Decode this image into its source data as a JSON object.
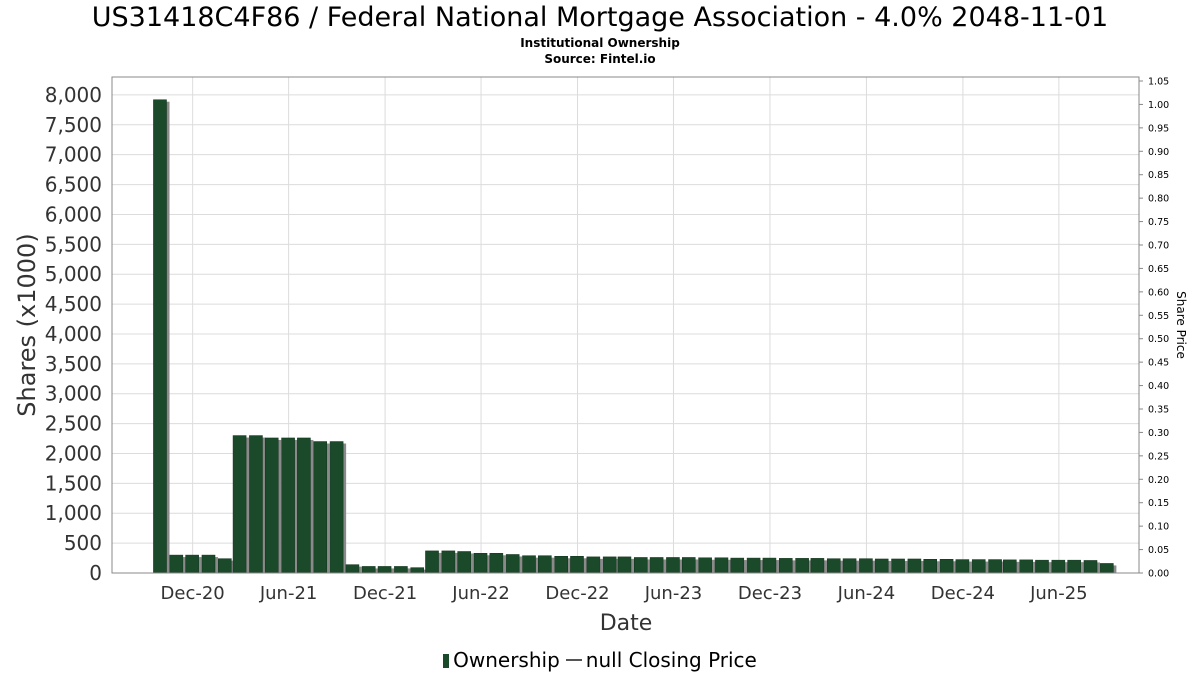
{
  "title": "US31418C4F86 / Federal National Mortgage Association - 4.0% 2048-11-01",
  "subtitle1": "Institutional Ownership",
  "subtitle2": "Source: Fintel.io",
  "legend": {
    "ownership": "Ownership",
    "price": "null Closing Price"
  },
  "colors": {
    "bar": "#1b4a2a",
    "bar_shadow": "#8a8a8a",
    "grid": "#dcdcdc",
    "frame": "#888888"
  },
  "chart_data": {
    "type": "bar",
    "xlabel": "Date",
    "ylabel": "Shares (x1000)",
    "y2label": "Share Price",
    "ylim": [
      0,
      8300
    ],
    "y2lim": [
      0,
      1.05
    ],
    "yticks": [
      0,
      500,
      1000,
      1500,
      2000,
      2500,
      3000,
      3500,
      4000,
      4500,
      5000,
      5500,
      6000,
      6500,
      7000,
      7500,
      8000
    ],
    "ytick_labels": [
      "0",
      "500",
      "1,000",
      "1,500",
      "2,000",
      "2,500",
      "3,000",
      "3,500",
      "4,000",
      "4,500",
      "5,000",
      "5,500",
      "6,000",
      "6,500",
      "7,000",
      "7,500",
      "8,000"
    ],
    "y2ticks": [
      "0.00",
      "0.05",
      "0.10",
      "0.15",
      "0.20",
      "0.25",
      "0.30",
      "0.35",
      "0.40",
      "0.45",
      "0.50",
      "0.55",
      "0.60",
      "0.65",
      "0.70",
      "0.75",
      "0.80",
      "0.85",
      "0.90",
      "0.95",
      "1.00",
      "1.05"
    ],
    "x_range": [
      "2020-07-01",
      "2025-10-31"
    ],
    "xticks": [
      {
        "date": "2020-12-01",
        "label": "Dec-20"
      },
      {
        "date": "2021-06-01",
        "label": "Jun-21"
      },
      {
        "date": "2021-12-01",
        "label": "Dec-21"
      },
      {
        "date": "2022-06-01",
        "label": "Jun-22"
      },
      {
        "date": "2022-12-01",
        "label": "Dec-22"
      },
      {
        "date": "2023-06-01",
        "label": "Jun-23"
      },
      {
        "date": "2023-12-01",
        "label": "Dec-23"
      },
      {
        "date": "2024-06-01",
        "label": "Jun-24"
      },
      {
        "date": "2024-12-01",
        "label": "Dec-24"
      },
      {
        "date": "2025-06-01",
        "label": "Jun-25"
      }
    ],
    "grid": true,
    "legend_position": "bottom",
    "series": [
      {
        "name": "Ownership",
        "points": [
          {
            "date": "2020-09-30",
            "value": 7920
          },
          {
            "date": "2020-10-31",
            "value": 300
          },
          {
            "date": "2020-11-30",
            "value": 300
          },
          {
            "date": "2020-12-31",
            "value": 300
          },
          {
            "date": "2021-01-31",
            "value": 240
          },
          {
            "date": "2021-02-28",
            "value": 2300
          },
          {
            "date": "2021-03-31",
            "value": 2300
          },
          {
            "date": "2021-04-30",
            "value": 2260
          },
          {
            "date": "2021-05-31",
            "value": 2260
          },
          {
            "date": "2021-06-30",
            "value": 2260
          },
          {
            "date": "2021-07-31",
            "value": 2200
          },
          {
            "date": "2021-08-31",
            "value": 2200
          },
          {
            "date": "2021-09-30",
            "value": 140
          },
          {
            "date": "2021-10-31",
            "value": 110
          },
          {
            "date": "2021-11-30",
            "value": 110
          },
          {
            "date": "2021-12-31",
            "value": 110
          },
          {
            "date": "2022-01-31",
            "value": 90
          },
          {
            "date": "2022-02-28",
            "value": 370
          },
          {
            "date": "2022-03-31",
            "value": 370
          },
          {
            "date": "2022-04-30",
            "value": 360
          },
          {
            "date": "2022-05-31",
            "value": 330
          },
          {
            "date": "2022-06-30",
            "value": 330
          },
          {
            "date": "2022-07-31",
            "value": 310
          },
          {
            "date": "2022-08-31",
            "value": 290
          },
          {
            "date": "2022-09-30",
            "value": 290
          },
          {
            "date": "2022-10-31",
            "value": 280
          },
          {
            "date": "2022-11-30",
            "value": 280
          },
          {
            "date": "2022-12-31",
            "value": 270
          },
          {
            "date": "2023-01-31",
            "value": 270
          },
          {
            "date": "2023-02-28",
            "value": 270
          },
          {
            "date": "2023-03-31",
            "value": 260
          },
          {
            "date": "2023-04-30",
            "value": 260
          },
          {
            "date": "2023-05-31",
            "value": 260
          },
          {
            "date": "2023-06-30",
            "value": 260
          },
          {
            "date": "2023-07-31",
            "value": 255
          },
          {
            "date": "2023-08-31",
            "value": 255
          },
          {
            "date": "2023-09-30",
            "value": 250
          },
          {
            "date": "2023-10-31",
            "value": 250
          },
          {
            "date": "2023-11-30",
            "value": 250
          },
          {
            "date": "2023-12-31",
            "value": 245
          },
          {
            "date": "2024-01-31",
            "value": 245
          },
          {
            "date": "2024-02-29",
            "value": 245
          },
          {
            "date": "2024-03-31",
            "value": 240
          },
          {
            "date": "2024-04-30",
            "value": 240
          },
          {
            "date": "2024-05-31",
            "value": 240
          },
          {
            "date": "2024-06-30",
            "value": 235
          },
          {
            "date": "2024-07-31",
            "value": 235
          },
          {
            "date": "2024-08-31",
            "value": 235
          },
          {
            "date": "2024-09-30",
            "value": 230
          },
          {
            "date": "2024-10-31",
            "value": 230
          },
          {
            "date": "2024-11-30",
            "value": 225
          },
          {
            "date": "2024-12-31",
            "value": 225
          },
          {
            "date": "2025-01-31",
            "value": 225
          },
          {
            "date": "2025-02-28",
            "value": 220
          },
          {
            "date": "2025-03-31",
            "value": 220
          },
          {
            "date": "2025-04-30",
            "value": 215
          },
          {
            "date": "2025-05-31",
            "value": 215
          },
          {
            "date": "2025-06-30",
            "value": 215
          },
          {
            "date": "2025-07-31",
            "value": 210
          },
          {
            "date": "2025-08-31",
            "value": 160
          }
        ]
      }
    ]
  }
}
